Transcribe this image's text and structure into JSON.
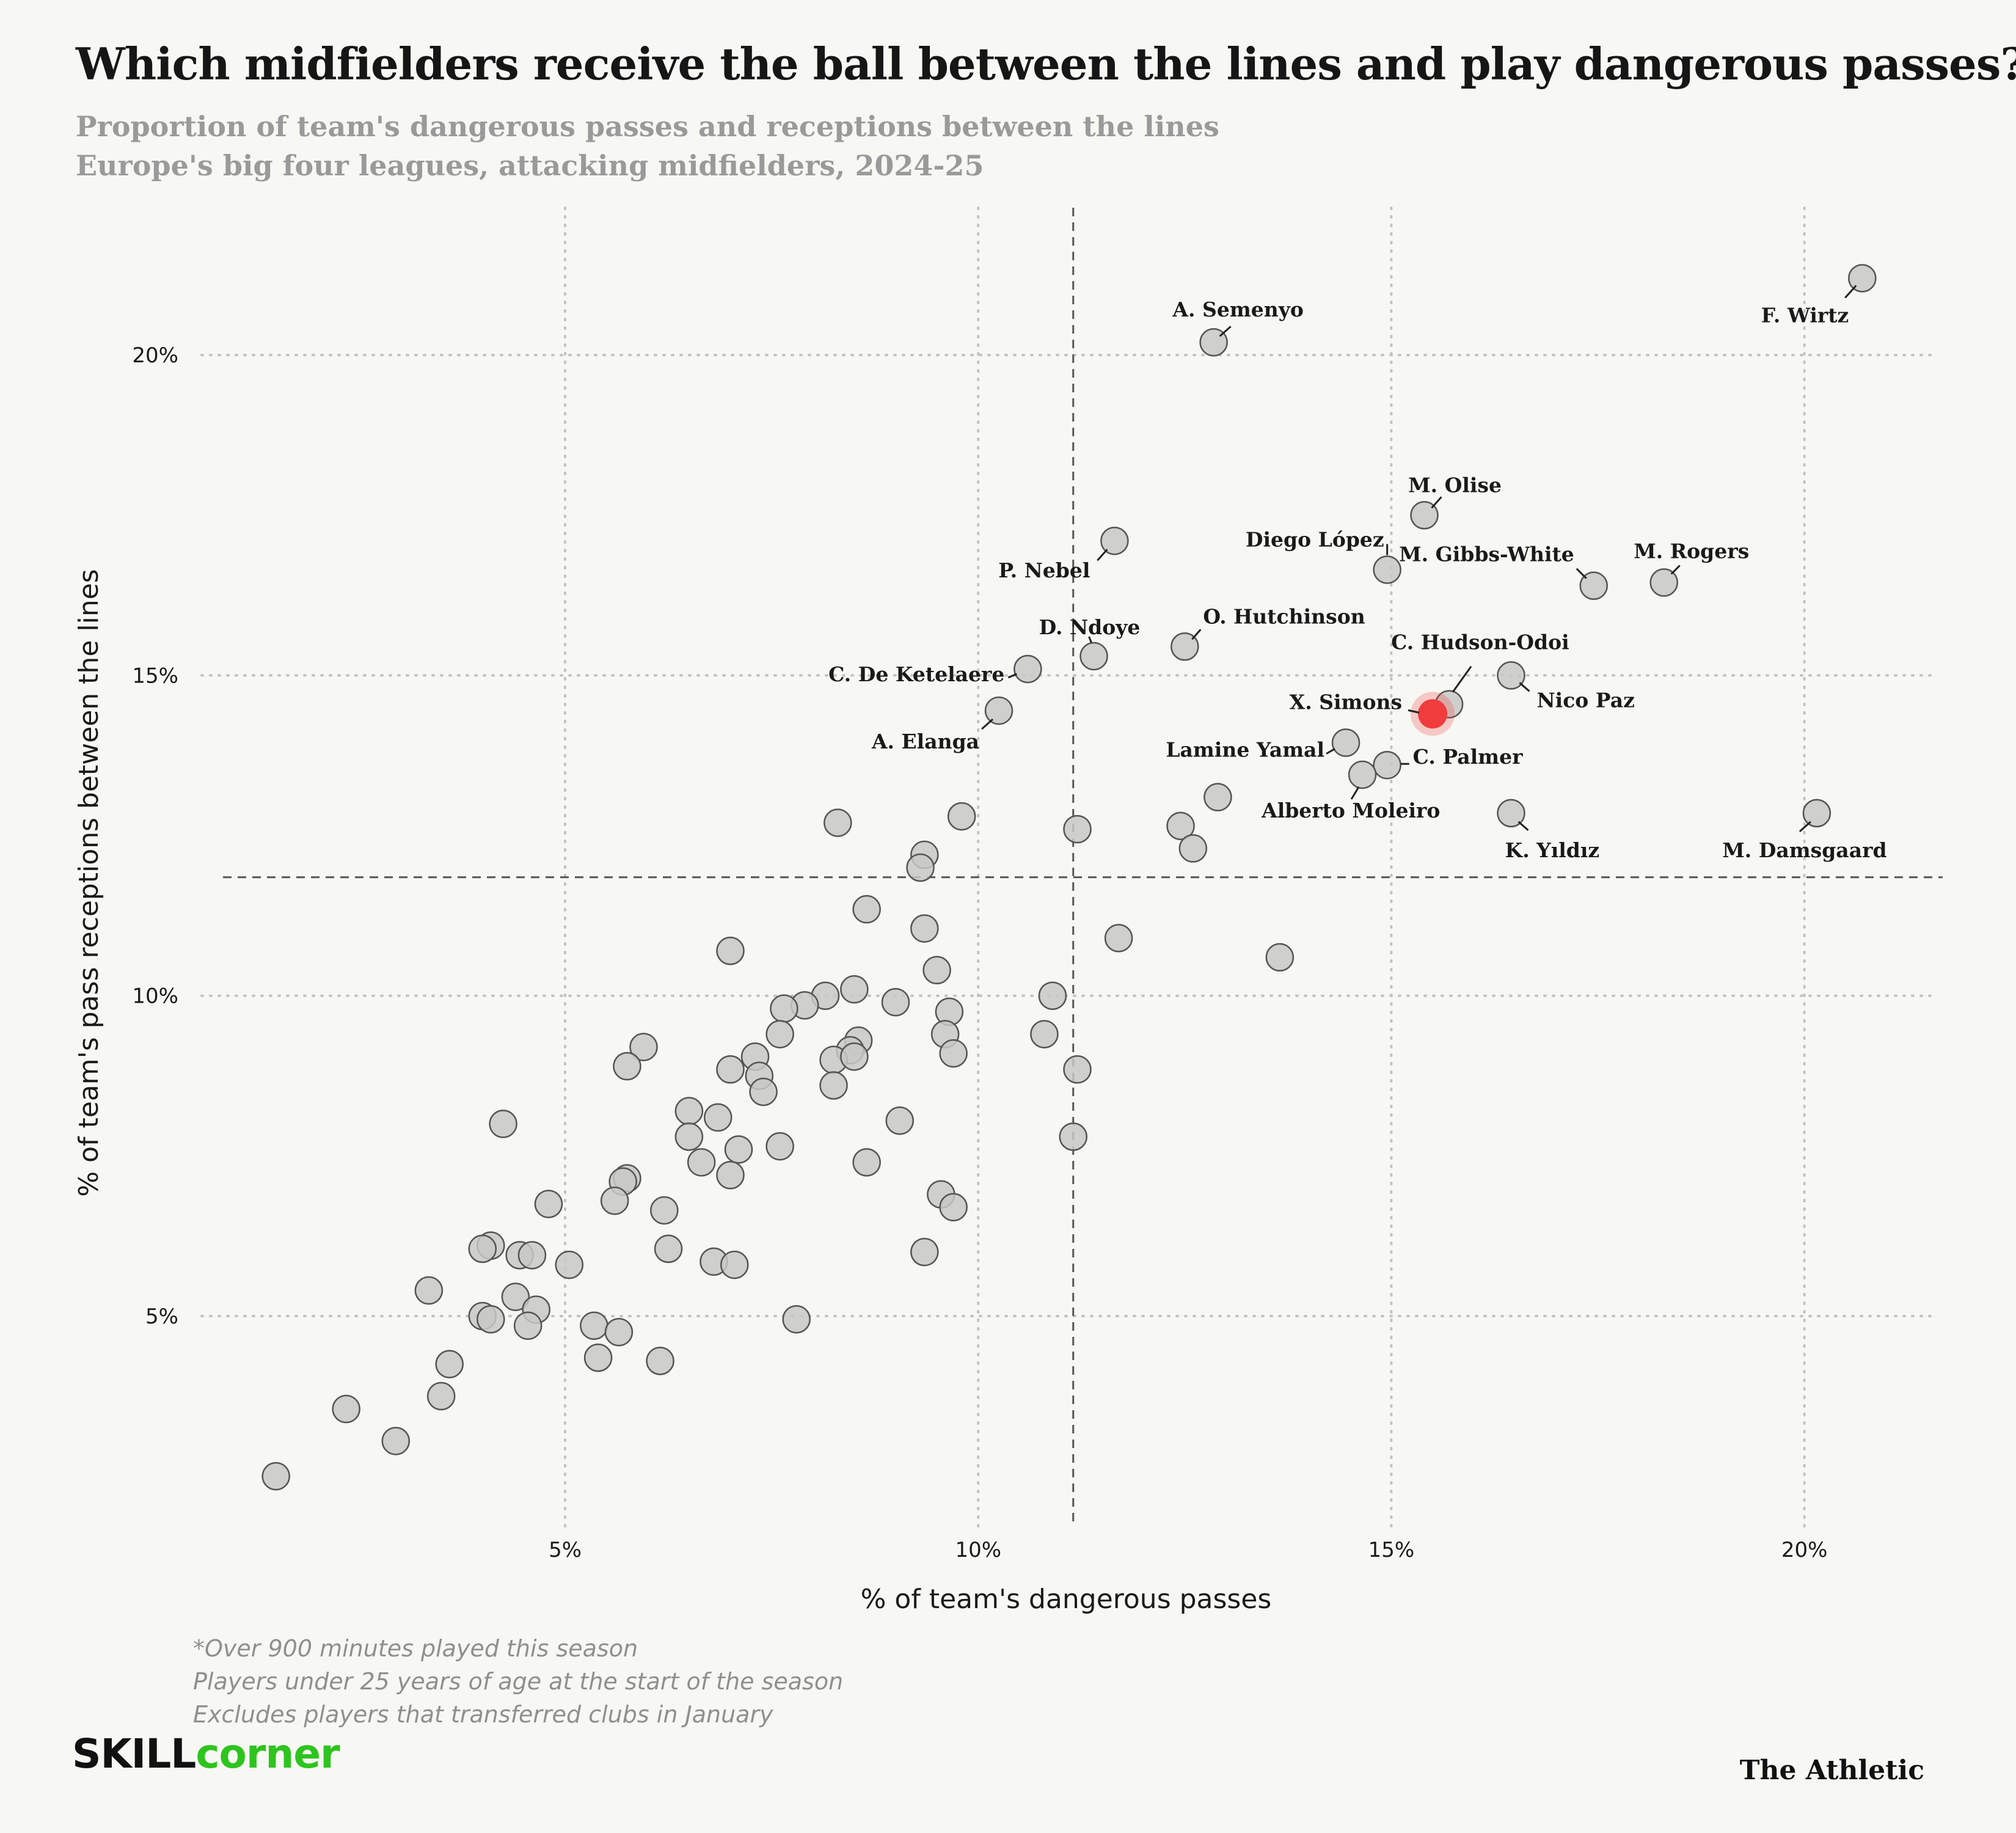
{
  "title": "Which midfielders receive the ball between the lines and play dangerous passes?",
  "subtitle_line1": "Proportion of team's dangerous passes and receptions between the lines",
  "subtitle_line2": "Europe's big four leagues, attacking midfielders, 2024-25",
  "notes": [
    "*Over 900 minutes played this season",
    "Players under 25 years of age at the start of the season",
    "Excludes players that transferred clubs in January"
  ],
  "logos": {
    "left_part1": "SKILL",
    "left_part2": "corner",
    "right": "The Athletic"
  },
  "colors": {
    "point_fill": "#c8c8c6",
    "point_stroke": "#555555",
    "highlight": "#f03c3c",
    "background": "#f7f7f3",
    "brand_green": "#2ec41e"
  },
  "chart_data": {
    "type": "scatter",
    "xlabel": "% of team's dangerous passes",
    "ylabel": "% of team's pass receptions between the lines",
    "xlim": [
      0.6,
      21.6
    ],
    "ylim": [
      1.7,
      22.3
    ],
    "x_ticks": [
      5,
      10,
      15,
      20
    ],
    "x_tick_labels": [
      "5%",
      "10%",
      "15%",
      "20%"
    ],
    "y_ticks": [
      5,
      10,
      15,
      20
    ],
    "y_tick_labels": [
      "5%",
      "10%",
      "15%",
      "20%"
    ],
    "grid": "dotted",
    "reference_lines": {
      "x": 11.15,
      "y": 11.85
    },
    "labeled_points": [
      {
        "name": "F. Wirtz",
        "x": 20.7,
        "y": 21.2
      },
      {
        "name": "A. Semenyo",
        "x": 12.85,
        "y": 20.2
      },
      {
        "name": "M. Olise",
        "x": 15.4,
        "y": 17.5
      },
      {
        "name": "P. Nebel",
        "x": 11.65,
        "y": 17.1
      },
      {
        "name": "Diego López",
        "x": 14.95,
        "y": 16.65
      },
      {
        "name": "M. Gibbs-White",
        "x": 17.45,
        "y": 16.4
      },
      {
        "name": "M. Rogers",
        "x": 18.3,
        "y": 16.45
      },
      {
        "name": "O. Hutchinson",
        "x": 12.5,
        "y": 15.45
      },
      {
        "name": "D. Ndoye",
        "x": 11.4,
        "y": 15.3
      },
      {
        "name": "C. De Ketelaere",
        "x": 10.6,
        "y": 15.1
      },
      {
        "name": "C. Hudson-Odoi",
        "x": 15.7,
        "y": 14.55
      },
      {
        "name": "Nico Paz",
        "x": 16.45,
        "y": 15.0
      },
      {
        "name": "X. Simons",
        "x": 15.5,
        "y": 14.4,
        "highlight": true
      },
      {
        "name": "A. Elanga",
        "x": 10.25,
        "y": 14.45
      },
      {
        "name": "Lamine Yamal",
        "x": 14.45,
        "y": 13.95
      },
      {
        "name": "C. Palmer",
        "x": 14.95,
        "y": 13.6
      },
      {
        "name": "Alberto Moleiro",
        "x": 14.65,
        "y": 13.45
      },
      {
        "name": "K. Yıldız",
        "x": 16.45,
        "y": 12.85
      },
      {
        "name": "M. Damsgaard",
        "x": 20.15,
        "y": 12.85
      }
    ],
    "other_points": [
      [
        12.9,
        13.1
      ],
      [
        9.8,
        12.8
      ],
      [
        8.3,
        12.7
      ],
      [
        11.2,
        12.6
      ],
      [
        12.45,
        12.65
      ],
      [
        12.6,
        12.3
      ],
      [
        9.35,
        12.2
      ],
      [
        9.3,
        12.0
      ],
      [
        8.65,
        11.35
      ],
      [
        9.35,
        11.05
      ],
      [
        11.7,
        10.9
      ],
      [
        7.0,
        10.7
      ],
      [
        13.65,
        10.6
      ],
      [
        9.5,
        10.4
      ],
      [
        8.5,
        10.1
      ],
      [
        10.9,
        10.0
      ],
      [
        8.15,
        10.0
      ],
      [
        9.0,
        9.9
      ],
      [
        7.9,
        9.85
      ],
      [
        7.65,
        9.8
      ],
      [
        9.65,
        9.75
      ],
      [
        7.6,
        9.4
      ],
      [
        9.6,
        9.4
      ],
      [
        10.8,
        9.4
      ],
      [
        8.55,
        9.3
      ],
      [
        5.95,
        9.2
      ],
      [
        8.45,
        9.15
      ],
      [
        8.25,
        9.0
      ],
      [
        7.3,
        9.05
      ],
      [
        9.7,
        9.1
      ],
      [
        8.5,
        9.05
      ],
      [
        5.75,
        8.9
      ],
      [
        7.0,
        8.85
      ],
      [
        11.2,
        8.85
      ],
      [
        7.35,
        8.75
      ],
      [
        8.25,
        8.6
      ],
      [
        7.4,
        8.5
      ],
      [
        6.5,
        8.2
      ],
      [
        6.85,
        8.1
      ],
      [
        4.25,
        8.0
      ],
      [
        9.05,
        8.05
      ],
      [
        6.5,
        7.8
      ],
      [
        11.15,
        7.8
      ],
      [
        7.6,
        7.65
      ],
      [
        7.1,
        7.6
      ],
      [
        6.65,
        7.4
      ],
      [
        8.65,
        7.4
      ],
      [
        7.0,
        7.2
      ],
      [
        5.75,
        7.15
      ],
      [
        5.7,
        7.1
      ],
      [
        5.6,
        6.8
      ],
      [
        4.8,
        6.75
      ],
      [
        9.55,
        6.9
      ],
      [
        6.2,
        6.65
      ],
      [
        9.7,
        6.7
      ],
      [
        4.1,
        6.1
      ],
      [
        4.0,
        6.05
      ],
      [
        6.25,
        6.05
      ],
      [
        9.35,
        6.0
      ],
      [
        4.45,
        5.95
      ],
      [
        4.6,
        5.95
      ],
      [
        5.05,
        5.8
      ],
      [
        6.8,
        5.85
      ],
      [
        7.05,
        5.8
      ],
      [
        3.35,
        5.4
      ],
      [
        4.4,
        5.3
      ],
      [
        4.65,
        5.1
      ],
      [
        4.0,
        5.0
      ],
      [
        4.1,
        4.95
      ],
      [
        4.55,
        4.85
      ],
      [
        5.35,
        4.85
      ],
      [
        7.8,
        4.95
      ],
      [
        5.65,
        4.75
      ],
      [
        5.4,
        4.35
      ],
      [
        3.6,
        4.25
      ],
      [
        6.15,
        4.3
      ],
      [
        3.5,
        3.75
      ],
      [
        2.35,
        3.55
      ],
      [
        2.95,
        3.05
      ],
      [
        1.5,
        2.5
      ]
    ]
  }
}
